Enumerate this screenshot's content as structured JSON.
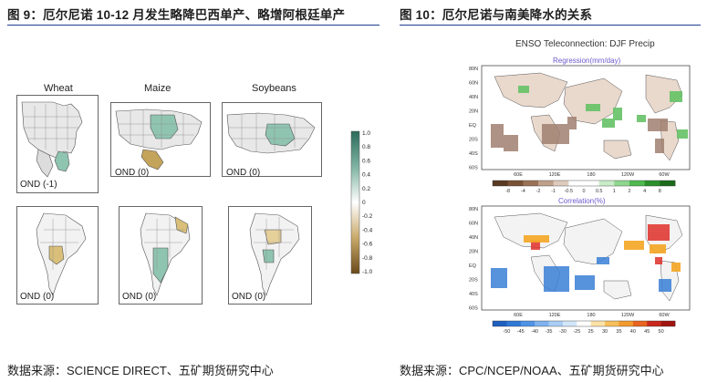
{
  "left": {
    "caption": "图 9：厄尔尼诺 10-12 月发生略降巴西单产、略增阿根廷单产",
    "source": "数据来源：SCIENCE DIRECT、五矿期货研究中心",
    "columns": [
      "Wheat",
      "Maize",
      "Soybeans"
    ],
    "us_labels": [
      "OND (-1)",
      "OND (0)",
      "OND (0)"
    ],
    "sa_labels": [
      "OND (0)",
      "OND (0)",
      "OND (0)"
    ],
    "colorbar_ticks": [
      "1.0",
      "0.8",
      "0.6",
      "0.4",
      "0.2",
      "0",
      "-0.2",
      "-0.4",
      "-0.6",
      "-0.8",
      "-1.0"
    ],
    "colors": {
      "positive": "#3f8f78",
      "negative": "#a8873e"
    }
  },
  "right": {
    "caption": "图 10：厄尔尼诺与南美降水的关系",
    "source": "数据来源：CPC/NCEP/NOAA、五矿期货研究中心",
    "title": "ENSO Teleconnection: DJF Precip",
    "regression_title": "Regression(mm/day)",
    "correlation_title": "Correlation(%)",
    "lat_ticks": [
      "80N",
      "60N",
      "40N",
      "20N",
      "EQ",
      "20S",
      "40S",
      "60S"
    ],
    "lon_ticks": [
      "60E",
      "120E",
      "180",
      "120W",
      "60W"
    ],
    "regression_ticks": [
      "-8",
      "-4",
      "-2",
      "-1",
      "-0.5",
      "0",
      "0.5",
      "1",
      "2",
      "4",
      "8"
    ],
    "correlation_ticks": [
      "-50",
      "-45",
      "-40",
      "-35",
      "-30",
      "-25",
      "25",
      "30",
      "35",
      "40",
      "45",
      "50"
    ]
  }
}
